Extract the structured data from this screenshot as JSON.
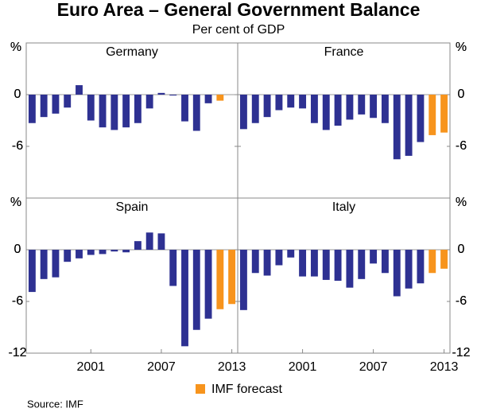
{
  "title": "Euro Area – General Government Balance",
  "subtitle": "Per cent of GDP",
  "source": "Source: IMF",
  "legend": {
    "label": "IMF forecast",
    "color": "#f7941d"
  },
  "chart_data": [
    {
      "type": "bar",
      "title": "Germany",
      "ylabel": "%",
      "x": [
        1996,
        1997,
        1998,
        1999,
        2000,
        2001,
        2002,
        2003,
        2004,
        2005,
        2006,
        2007,
        2008,
        2009,
        2010,
        2011,
        2012,
        2013
      ],
      "values": [
        -3.3,
        -2.6,
        -2.2,
        -1.5,
        1.1,
        -3.0,
        -3.8,
        -4.1,
        -3.8,
        -3.3,
        -1.6,
        0.2,
        -0.1,
        -3.1,
        -4.2,
        -1.0,
        -0.7,
        0
      ],
      "colors": [
        "#2e3192",
        "#2e3192",
        "#2e3192",
        "#2e3192",
        "#2e3192",
        "#2e3192",
        "#2e3192",
        "#2e3192",
        "#2e3192",
        "#2e3192",
        "#2e3192",
        "#2e3192",
        "#2e3192",
        "#2e3192",
        "#2e3192",
        "#2e3192",
        "#f7941d",
        "#f7941d"
      ],
      "xlim": [
        1995.5,
        2013.5
      ],
      "ylim": [
        -12,
        6
      ],
      "yticks": [
        0,
        -6
      ]
    },
    {
      "type": "bar",
      "title": "France",
      "ylabel": "%",
      "x": [
        1996,
        1997,
        1998,
        1999,
        2000,
        2001,
        2002,
        2003,
        2004,
        2005,
        2006,
        2007,
        2008,
        2009,
        2010,
        2011,
        2012,
        2013
      ],
      "values": [
        -4.0,
        -3.3,
        -2.6,
        -1.8,
        -1.5,
        -1.6,
        -3.3,
        -4.1,
        -3.6,
        -2.9,
        -2.3,
        -2.7,
        -3.3,
        -7.5,
        -7.1,
        -5.5,
        -4.7,
        -4.4
      ],
      "colors": [
        "#2e3192",
        "#2e3192",
        "#2e3192",
        "#2e3192",
        "#2e3192",
        "#2e3192",
        "#2e3192",
        "#2e3192",
        "#2e3192",
        "#2e3192",
        "#2e3192",
        "#2e3192",
        "#2e3192",
        "#2e3192",
        "#2e3192",
        "#2e3192",
        "#f7941d",
        "#f7941d"
      ],
      "xlim": [
        1995.5,
        2013.5
      ],
      "ylim": [
        -12,
        6
      ],
      "yticks": [
        0,
        -6
      ]
    },
    {
      "type": "bar",
      "title": "Spain",
      "ylabel": "%",
      "x": [
        1996,
        1997,
        1998,
        1999,
        2000,
        2001,
        2002,
        2003,
        2004,
        2005,
        2006,
        2007,
        2008,
        2009,
        2010,
        2011,
        2012,
        2013
      ],
      "values": [
        -4.9,
        -3.4,
        -3.2,
        -1.4,
        -1.0,
        -0.6,
        -0.5,
        -0.2,
        -0.3,
        1.0,
        2.0,
        1.9,
        -4.2,
        -11.2,
        -9.3,
        -8.0,
        -6.9,
        -6.3
      ],
      "colors": [
        "#2e3192",
        "#2e3192",
        "#2e3192",
        "#2e3192",
        "#2e3192",
        "#2e3192",
        "#2e3192",
        "#2e3192",
        "#2e3192",
        "#2e3192",
        "#2e3192",
        "#2e3192",
        "#2e3192",
        "#2e3192",
        "#2e3192",
        "#2e3192",
        "#f7941d",
        "#f7941d"
      ],
      "xlim": [
        1995.5,
        2013.5
      ],
      "ylim": [
        -12,
        6
      ],
      "yticks": [
        0,
        -6,
        -12
      ],
      "xticks": [
        2001,
        2007,
        2013
      ]
    },
    {
      "type": "bar",
      "title": "Italy",
      "ylabel": "%",
      "x": [
        1996,
        1997,
        1998,
        1999,
        2000,
        2001,
        2002,
        2003,
        2004,
        2005,
        2006,
        2007,
        2008,
        2009,
        2010,
        2011,
        2012,
        2013
      ],
      "values": [
        -7.0,
        -2.7,
        -3.0,
        -1.8,
        -0.9,
        -3.1,
        -3.1,
        -3.5,
        -3.6,
        -4.4,
        -3.4,
        -1.6,
        -2.7,
        -5.4,
        -4.5,
        -3.9,
        -2.7,
        -2.2
      ],
      "colors": [
        "#2e3192",
        "#2e3192",
        "#2e3192",
        "#2e3192",
        "#2e3192",
        "#2e3192",
        "#2e3192",
        "#2e3192",
        "#2e3192",
        "#2e3192",
        "#2e3192",
        "#2e3192",
        "#2e3192",
        "#2e3192",
        "#2e3192",
        "#2e3192",
        "#f7941d",
        "#f7941d"
      ],
      "xlim": [
        1995.5,
        2013.5
      ],
      "ylim": [
        -12,
        6
      ],
      "yticks": [
        0,
        -6,
        -12
      ],
      "xticks": [
        2001,
        2007,
        2013
      ]
    }
  ]
}
